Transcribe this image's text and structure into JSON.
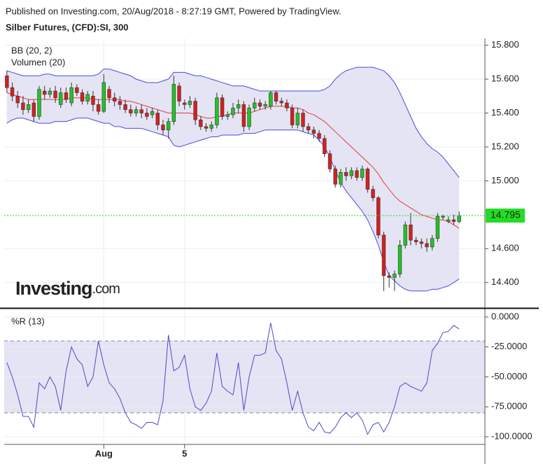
{
  "header": {
    "published": "Published on Investing.com, 20/Aug/2018 - 8:27:19 GMT, Powered by TradingView.",
    "instrument": "Silber Futures, (CFD):SI, 300"
  },
  "logo": {
    "main": "Investing",
    "suffix": ".com"
  },
  "chart_data": [
    {
      "type": "candlestick",
      "legend": [
        "BB (20, 2)",
        "Volumen (20)"
      ],
      "categories": [
        null,
        null,
        null,
        null,
        null,
        null,
        null,
        null,
        null,
        null,
        null,
        null,
        null,
        null,
        null,
        null,
        null,
        null,
        "Aug",
        null,
        null,
        null,
        null,
        null,
        null,
        null,
        null,
        null,
        null,
        null,
        null,
        null,
        null,
        "5",
        null,
        null,
        null,
        null,
        null,
        null,
        null,
        null,
        null,
        null,
        null,
        null,
        null,
        null,
        null,
        null,
        null,
        null,
        null,
        null,
        null,
        null,
        null,
        null,
        null,
        null,
        null,
        null,
        null,
        null,
        null,
        null,
        null,
        null,
        null,
        null,
        null,
        null,
        null,
        null,
        null,
        null,
        null,
        null,
        null,
        null,
        null,
        null,
        null,
        null,
        null
      ],
      "open": [
        15.62,
        15.55,
        15.5,
        15.46,
        15.42,
        15.46,
        15.38,
        15.53,
        15.51,
        15.53,
        15.45,
        15.52,
        15.46,
        15.55,
        15.52,
        15.47,
        15.5,
        15.45,
        15.41,
        15.54,
        15.49,
        15.47,
        15.45,
        15.42,
        15.4,
        15.42,
        15.4,
        15.39,
        15.4,
        15.33,
        15.3,
        15.35,
        15.56,
        15.46,
        15.45,
        15.47,
        15.36,
        15.32,
        15.31,
        15.33,
        15.49,
        15.38,
        15.39,
        15.43,
        15.45,
        15.32,
        15.43,
        15.46,
        15.44,
        15.44,
        15.52,
        15.47,
        15.46,
        15.43,
        15.33,
        15.4,
        15.32,
        15.3,
        15.28,
        15.25,
        15.16,
        15.07,
        14.98,
        15.05,
        15.03,
        15.06,
        15.02,
        15.07,
        14.95,
        14.9,
        14.68,
        14.44,
        14.43,
        14.45,
        14.62,
        14.74,
        14.65,
        14.64,
        14.63,
        14.61,
        14.66,
        14.79,
        14.76,
        14.77,
        14.76
      ],
      "high": [
        15.65,
        15.58,
        15.53,
        15.5,
        15.48,
        15.48,
        15.56,
        15.56,
        15.55,
        15.56,
        15.55,
        15.55,
        15.58,
        15.57,
        15.54,
        15.53,
        15.53,
        15.48,
        15.63,
        15.56,
        15.52,
        15.5,
        15.48,
        15.45,
        15.44,
        15.45,
        15.43,
        15.43,
        15.42,
        15.36,
        15.37,
        15.62,
        15.58,
        15.48,
        15.5,
        15.49,
        15.38,
        15.34,
        15.35,
        15.52,
        15.51,
        15.41,
        15.46,
        15.48,
        15.47,
        15.45,
        15.49,
        15.48,
        15.47,
        15.53,
        15.53,
        15.49,
        15.48,
        15.45,
        15.43,
        15.42,
        15.34,
        15.32,
        15.3,
        15.27,
        15.18,
        15.09,
        15.07,
        15.08,
        15.08,
        15.08,
        15.09,
        15.08,
        14.97,
        14.91,
        14.7,
        14.46,
        14.47,
        14.65,
        14.76,
        14.81,
        14.67,
        14.66,
        14.66,
        14.68,
        14.81,
        14.8,
        14.79,
        14.8,
        14.82
      ],
      "low": [
        15.52,
        15.47,
        15.43,
        15.39,
        15.4,
        15.35,
        15.36,
        15.48,
        15.49,
        15.46,
        15.43,
        15.46,
        15.44,
        15.5,
        15.45,
        15.45,
        15.41,
        15.39,
        15.4,
        15.46,
        15.44,
        15.42,
        15.4,
        15.38,
        15.38,
        15.37,
        15.36,
        15.37,
        15.3,
        15.27,
        15.25,
        15.33,
        15.44,
        15.42,
        15.43,
        15.33,
        15.3,
        15.29,
        15.29,
        15.31,
        15.36,
        15.36,
        15.37,
        15.4,
        15.29,
        15.3,
        15.41,
        15.42,
        15.42,
        15.42,
        15.45,
        15.44,
        15.41,
        15.31,
        15.31,
        15.29,
        15.28,
        15.25,
        15.23,
        15.14,
        15.05,
        14.96,
        14.96,
        15.0,
        15.01,
        15.0,
        15.0,
        14.93,
        14.88,
        14.66,
        14.35,
        14.37,
        14.35,
        14.43,
        14.6,
        14.62,
        14.62,
        14.6,
        14.58,
        14.59,
        14.64,
        14.77,
        14.75,
        14.74,
        14.75
      ],
      "close": [
        15.55,
        15.5,
        15.46,
        15.42,
        15.45,
        15.38,
        15.54,
        15.51,
        15.53,
        15.49,
        15.52,
        15.48,
        15.55,
        15.52,
        15.47,
        15.51,
        15.45,
        15.41,
        15.58,
        15.49,
        15.47,
        15.45,
        15.42,
        15.4,
        15.42,
        15.4,
        15.38,
        15.41,
        15.33,
        15.3,
        15.35,
        15.57,
        15.47,
        15.45,
        15.47,
        15.36,
        15.32,
        15.31,
        15.33,
        15.49,
        15.38,
        15.39,
        15.43,
        15.45,
        15.32,
        15.43,
        15.46,
        15.44,
        15.45,
        15.52,
        15.47,
        15.46,
        15.43,
        15.33,
        15.4,
        15.32,
        15.3,
        15.28,
        15.25,
        15.16,
        15.07,
        14.98,
        15.05,
        15.03,
        15.06,
        15.02,
        15.07,
        14.95,
        14.9,
        14.68,
        14.44,
        14.43,
        14.45,
        14.62,
        14.74,
        14.65,
        14.64,
        14.63,
        14.61,
        14.66,
        14.79,
        14.79,
        14.77,
        14.76,
        14.795
      ],
      "up_color": "#22c422",
      "down_color": "#d91e1e",
      "bollinger": {
        "upper": [
          15.65,
          15.64,
          15.63,
          15.62,
          15.62,
          15.62,
          15.62,
          15.63,
          15.63,
          15.62,
          15.62,
          15.62,
          15.62,
          15.62,
          15.62,
          15.62,
          15.62,
          15.63,
          15.66,
          15.66,
          15.65,
          15.64,
          15.63,
          15.62,
          15.6,
          15.59,
          15.58,
          15.58,
          15.58,
          15.59,
          15.6,
          15.64,
          15.64,
          15.64,
          15.63,
          15.62,
          15.62,
          15.61,
          15.6,
          15.59,
          15.58,
          15.57,
          15.56,
          15.56,
          15.56,
          15.55,
          15.54,
          15.53,
          15.53,
          15.53,
          15.53,
          15.53,
          15.53,
          15.53,
          15.53,
          15.53,
          15.53,
          15.53,
          15.53,
          15.54,
          15.56,
          15.6,
          15.63,
          15.65,
          15.66,
          15.67,
          15.67,
          15.67,
          15.67,
          15.66,
          15.65,
          15.62,
          15.58,
          15.52,
          15.45,
          15.38,
          15.31,
          15.26,
          15.22,
          15.19,
          15.17,
          15.14,
          15.1,
          15.06,
          15.02
        ],
        "middle": [
          15.52,
          15.51,
          15.5,
          15.49,
          15.48,
          15.48,
          15.48,
          15.48,
          15.48,
          15.48,
          15.48,
          15.48,
          15.49,
          15.49,
          15.49,
          15.49,
          15.48,
          15.48,
          15.48,
          15.48,
          15.48,
          15.48,
          15.47,
          15.47,
          15.46,
          15.45,
          15.44,
          15.43,
          15.42,
          15.41,
          15.4,
          15.4,
          15.4,
          15.4,
          15.4,
          15.39,
          15.38,
          15.37,
          15.37,
          15.38,
          15.38,
          15.39,
          15.4,
          15.4,
          15.4,
          15.4,
          15.41,
          15.42,
          15.43,
          15.44,
          15.44,
          15.44,
          15.44,
          15.43,
          15.43,
          15.42,
          15.4,
          15.39,
          15.37,
          15.35,
          15.32,
          15.29,
          15.26,
          15.23,
          15.2,
          15.17,
          15.14,
          15.11,
          15.08,
          15.04,
          14.99,
          14.95,
          14.91,
          14.88,
          14.86,
          14.84,
          14.82,
          14.8,
          14.79,
          14.78,
          14.77,
          14.77,
          14.76,
          14.74,
          14.72
        ],
        "lower": [
          15.34,
          15.36,
          15.37,
          15.37,
          15.36,
          15.35,
          15.34,
          15.34,
          15.34,
          15.35,
          15.35,
          15.35,
          15.36,
          15.37,
          15.37,
          15.37,
          15.36,
          15.35,
          15.34,
          15.34,
          15.32,
          15.32,
          15.31,
          15.31,
          15.31,
          15.31,
          15.3,
          15.29,
          15.28,
          15.27,
          15.26,
          15.21,
          15.2,
          15.21,
          15.22,
          15.23,
          15.24,
          15.25,
          15.26,
          15.26,
          15.27,
          15.27,
          15.27,
          15.27,
          15.28,
          15.28,
          15.28,
          15.29,
          15.3,
          15.3,
          15.3,
          15.3,
          15.3,
          15.3,
          15.3,
          15.29,
          15.28,
          15.27,
          15.24,
          15.2,
          15.14,
          15.06,
          14.99,
          14.94,
          14.9,
          14.86,
          14.82,
          14.77,
          14.7,
          14.62,
          14.52,
          14.44,
          14.41,
          14.38,
          14.36,
          14.35,
          14.35,
          14.35,
          14.35,
          14.36,
          14.36,
          14.37,
          14.38,
          14.4,
          14.42
        ],
        "band_color": "#4a4ae0",
        "middle_color": "#e03c3c",
        "fill": "#e4e4f4"
      },
      "last_price": 14.795,
      "last_price_color": "#22dd22",
      "ylim": [
        14.25,
        15.84
      ],
      "yticks": [
        {
          "value": 15.8,
          "label": "15.800"
        },
        {
          "value": 15.6,
          "label": "15.600"
        },
        {
          "value": 15.4,
          "label": "15.400"
        },
        {
          "value": 15.2,
          "label": "15.200"
        },
        {
          "value": 15.0,
          "label": "15.000"
        },
        {
          "value": 14.6,
          "label": "14.600"
        },
        {
          "value": 14.4,
          "label": "14.400"
        }
      ],
      "grid": true
    },
    {
      "type": "line",
      "title": "%R (13)",
      "series": [
        {
          "color": "#4a4ac8",
          "values": [
            -38,
            -50,
            -65,
            -83,
            -83,
            -92,
            -55,
            -60,
            -50,
            -58,
            -78,
            -45,
            -25,
            -35,
            -40,
            -58,
            -50,
            -20,
            -40,
            -55,
            -60,
            -68,
            -80,
            -88,
            -90,
            -93,
            -88,
            -88,
            -90,
            -70,
            -15,
            -45,
            -42,
            -32,
            -60,
            -75,
            -78,
            -72,
            -62,
            -30,
            -58,
            -62,
            -65,
            -38,
            -78,
            -50,
            -32,
            -32,
            -30,
            -5,
            -28,
            -35,
            -55,
            -78,
            -62,
            -80,
            -92,
            -95,
            -88,
            -96,
            -97,
            -92,
            -84,
            -80,
            -84,
            -80,
            -86,
            -98,
            -90,
            -88,
            -96,
            -88,
            -75,
            -58,
            -55,
            -58,
            -60,
            -62,
            -55,
            -28,
            -22,
            -13,
            -12,
            -7,
            -10
          ]
        }
      ],
      "levels": [
        -20,
        -80
      ],
      "level_color": "#8888aa",
      "fill": "#e4e4f4",
      "ylim": [
        -106.4,
        5.8
      ],
      "yticks": [
        {
          "value": 0,
          "label": "0.0000"
        },
        {
          "value": -25,
          "label": "-25.0000"
        },
        {
          "value": -50,
          "label": "-50.0000"
        },
        {
          "value": -75,
          "label": "-75.0000"
        },
        {
          "value": -100,
          "label": "-100.0000"
        }
      ],
      "grid": true
    }
  ]
}
